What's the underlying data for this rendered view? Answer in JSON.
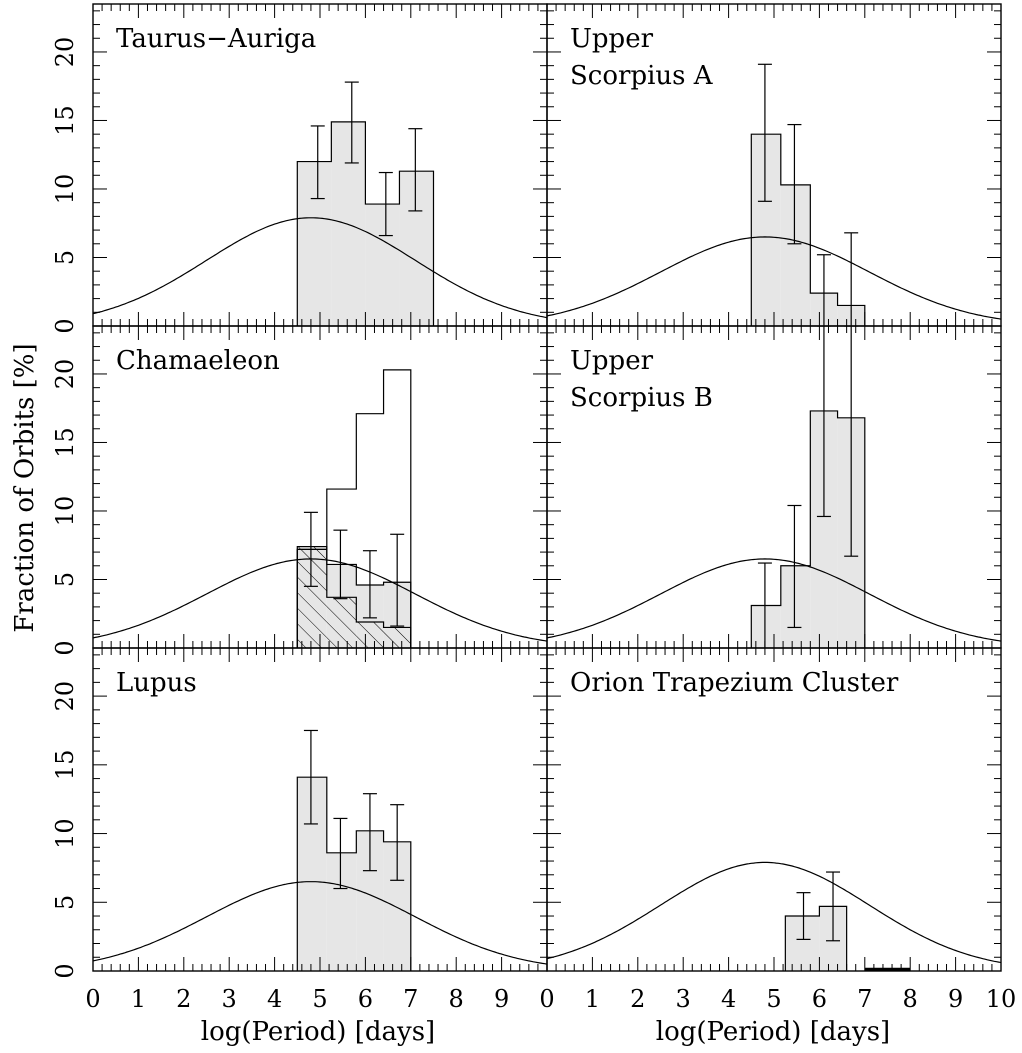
{
  "figure": {
    "ylabel": "Fraction of Orbits [%]",
    "xlabel": "log(Period) [days]",
    "x_ticks": [
      "0",
      "1",
      "2",
      "3",
      "4",
      "5",
      "6",
      "7",
      "8",
      "9",
      "0",
      "1",
      "2",
      "3",
      "4",
      "5",
      "6",
      "7",
      "8",
      "9",
      "10"
    ],
    "y_ticks": [
      "0",
      "5",
      "10",
      "15",
      "20"
    ]
  },
  "colors": {
    "fill": "#e6e6e6",
    "line": "#000000"
  },
  "chart_data": [
    {
      "type": "bar",
      "title": [
        "Taurus−Auriga"
      ],
      "xlim": [
        0,
        10
      ],
      "ylim": [
        0,
        23.5
      ],
      "grid": false,
      "gaussian": {
        "mean": 4.8,
        "sigma": 2.3,
        "peak": 7.9
      },
      "bin_edges": [
        4.5,
        5.25,
        6.0,
        6.75,
        7.5
      ],
      "values": [
        12.0,
        14.9,
        8.9,
        11.3
      ],
      "errors": [
        [
          9.3,
          14.6
        ],
        [
          11.9,
          17.8
        ],
        [
          6.6,
          11.2
        ],
        [
          8.4,
          14.4
        ]
      ],
      "error_x": [
        4.95,
        5.7,
        6.45,
        7.1
      ]
    },
    {
      "type": "bar",
      "title": [
        "Upper",
        "Scorpius A"
      ],
      "xlim": [
        0,
        10
      ],
      "ylim": [
        0,
        23.5
      ],
      "grid": false,
      "gaussian": {
        "mean": 4.8,
        "sigma": 2.3,
        "peak": 6.5
      },
      "bin_edges": [
        4.5,
        5.15,
        5.8,
        6.4,
        7.0
      ],
      "values": [
        14.0,
        10.3,
        2.4,
        1.5
      ],
      "errors": [
        [
          9.1,
          19.1
        ],
        [
          6.0,
          14.7
        ],
        [
          null,
          5.2
        ],
        [
          null,
          6.8
        ]
      ],
      "error_x": [
        4.8,
        5.45,
        6.1,
        6.7
      ]
    },
    {
      "type": "bar",
      "title": [
        "Chamaeleon"
      ],
      "xlim": [
        0,
        10
      ],
      "ylim": [
        0,
        23.5
      ],
      "grid": false,
      "gaussian": {
        "mean": 4.8,
        "sigma": 2.3,
        "peak": 6.5
      },
      "bin_edges": [
        4.5,
        5.15,
        5.8,
        6.4,
        7.0
      ],
      "values": [
        7.2,
        6.1,
        4.6,
        4.8
      ],
      "hatched_values": [
        7.4,
        3.7,
        1.9,
        1.5
      ],
      "upper_values": [
        7.2,
        11.6,
        17.1,
        20.3
      ],
      "errors": [
        [
          4.5,
          9.9
        ],
        [
          3.6,
          8.6
        ],
        [
          2.2,
          7.1
        ],
        [
          1.6,
          8.3
        ]
      ],
      "error_x": [
        4.8,
        5.45,
        6.1,
        6.7
      ]
    },
    {
      "type": "bar",
      "title": [
        "Upper",
        "Scorpius B"
      ],
      "xlim": [
        0,
        10
      ],
      "ylim": [
        0,
        23.5
      ],
      "grid": false,
      "gaussian": {
        "mean": 4.8,
        "sigma": 2.3,
        "peak": 6.5
      },
      "bin_edges": [
        4.5,
        5.15,
        5.8,
        6.4,
        7.0
      ],
      "values": [
        3.1,
        6.0,
        17.3,
        16.8
      ],
      "errors": [
        [
          null,
          6.2
        ],
        [
          1.5,
          10.4
        ],
        [
          9.6,
          23.5
        ],
        [
          6.7,
          23.5
        ]
      ],
      "error_x": [
        4.8,
        5.45,
        6.1,
        6.7
      ]
    },
    {
      "type": "bar",
      "title": [
        "Lupus"
      ],
      "xlim": [
        0,
        10
      ],
      "ylim": [
        0,
        23.5
      ],
      "grid": false,
      "gaussian": {
        "mean": 4.8,
        "sigma": 2.3,
        "peak": 6.5
      },
      "bin_edges": [
        4.5,
        5.15,
        5.8,
        6.4,
        7.0
      ],
      "values": [
        14.1,
        8.6,
        10.2,
        9.4
      ],
      "errors": [
        [
          10.7,
          17.5
        ],
        [
          6.0,
          11.1
        ],
        [
          7.3,
          12.9
        ],
        [
          6.6,
          12.1
        ]
      ],
      "error_x": [
        4.8,
        5.45,
        6.1,
        6.7
      ]
    },
    {
      "type": "bar",
      "title": [
        "Orion Trapezium Cluster"
      ],
      "xlim": [
        0,
        10
      ],
      "ylim": [
        0,
        23.5
      ],
      "grid": false,
      "gaussian": {
        "mean": 4.8,
        "sigma": 2.3,
        "peak": 7.9
      },
      "bin_edges": [
        5.25,
        6.0,
        6.6
      ],
      "values": [
        4.0,
        4.7
      ],
      "errors": [
        [
          2.3,
          5.7
        ],
        [
          2.2,
          7.2
        ]
      ],
      "error_x": [
        5.65,
        6.3
      ],
      "thick_segment": [
        7.0,
        8.0
      ]
    }
  ]
}
